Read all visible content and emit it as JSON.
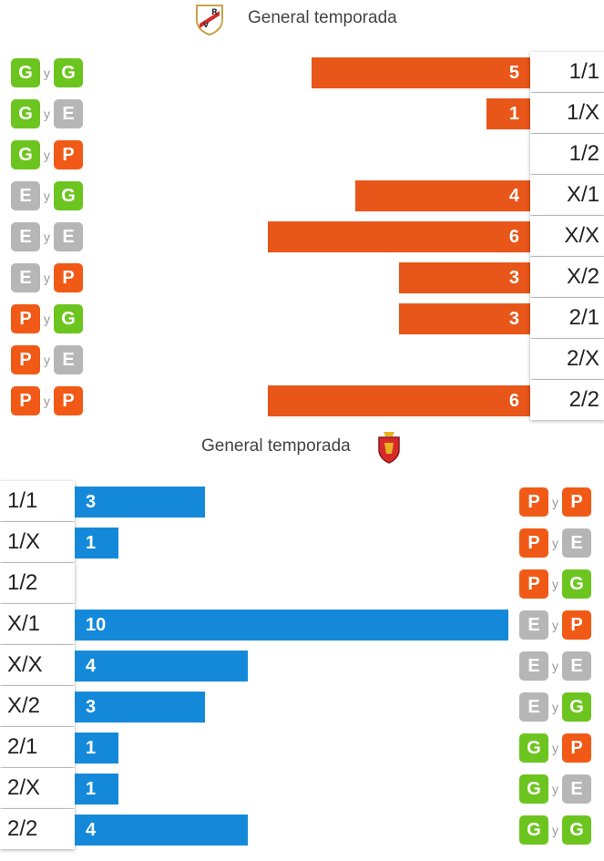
{
  "colors": {
    "G": "#6cc51f",
    "E": "#b6b6b6",
    "P": "#f15a16",
    "home_bar": "#e8561a",
    "away_bar": "#1489da"
  },
  "top": {
    "title": "General temporada",
    "crest_icon": "rayo-vallecano-crest-icon",
    "connector": "y",
    "rows": [
      {
        "code": "1/1",
        "pair": [
          "G",
          "G"
        ],
        "value": 5
      },
      {
        "code": "1/X",
        "pair": [
          "G",
          "E"
        ],
        "value": 1
      },
      {
        "code": "1/2",
        "pair": [
          "G",
          "P"
        ],
        "value": 0
      },
      {
        "code": "X/1",
        "pair": [
          "E",
          "G"
        ],
        "value": 4
      },
      {
        "code": "X/X",
        "pair": [
          "E",
          "E"
        ],
        "value": 6
      },
      {
        "code": "X/2",
        "pair": [
          "E",
          "P"
        ],
        "value": 3
      },
      {
        "code": "2/1",
        "pair": [
          "P",
          "G"
        ],
        "value": 3
      },
      {
        "code": "2/X",
        "pair": [
          "P",
          "E"
        ],
        "value": 0
      },
      {
        "code": "2/2",
        "pair": [
          "P",
          "P"
        ],
        "value": 6
      }
    ]
  },
  "bottom": {
    "title": "General temporada",
    "crest_icon": "real-zaragoza-crest-icon",
    "connector": "y",
    "rows": [
      {
        "code": "1/1",
        "pair": [
          "P",
          "P"
        ],
        "value": 3
      },
      {
        "code": "1/X",
        "pair": [
          "P",
          "E"
        ],
        "value": 1
      },
      {
        "code": "1/2",
        "pair": [
          "P",
          "G"
        ],
        "value": 0
      },
      {
        "code": "X/1",
        "pair": [
          "E",
          "P"
        ],
        "value": 10
      },
      {
        "code": "X/X",
        "pair": [
          "E",
          "E"
        ],
        "value": 4
      },
      {
        "code": "X/2",
        "pair": [
          "E",
          "G"
        ],
        "value": 3
      },
      {
        "code": "2/1",
        "pair": [
          "G",
          "P"
        ],
        "value": 1
      },
      {
        "code": "2/X",
        "pair": [
          "G",
          "E"
        ],
        "value": 1
      },
      {
        "code": "2/2",
        "pair": [
          "G",
          "G"
        ],
        "value": 4
      }
    ]
  },
  "chart_data": [
    {
      "type": "bar",
      "title": "General temporada",
      "categories": [
        "1/1",
        "1/X",
        "1/2",
        "X/1",
        "X/X",
        "X/2",
        "2/1",
        "2/X",
        "2/2"
      ],
      "values": [
        5,
        1,
        0,
        4,
        6,
        3,
        3,
        0,
        6
      ]
    },
    {
      "type": "bar",
      "title": "General temporada",
      "categories": [
        "1/1",
        "1/X",
        "1/2",
        "X/1",
        "X/X",
        "X/2",
        "2/1",
        "2/X",
        "2/2"
      ],
      "values": [
        3,
        1,
        0,
        10,
        4,
        3,
        1,
        1,
        4
      ]
    }
  ]
}
